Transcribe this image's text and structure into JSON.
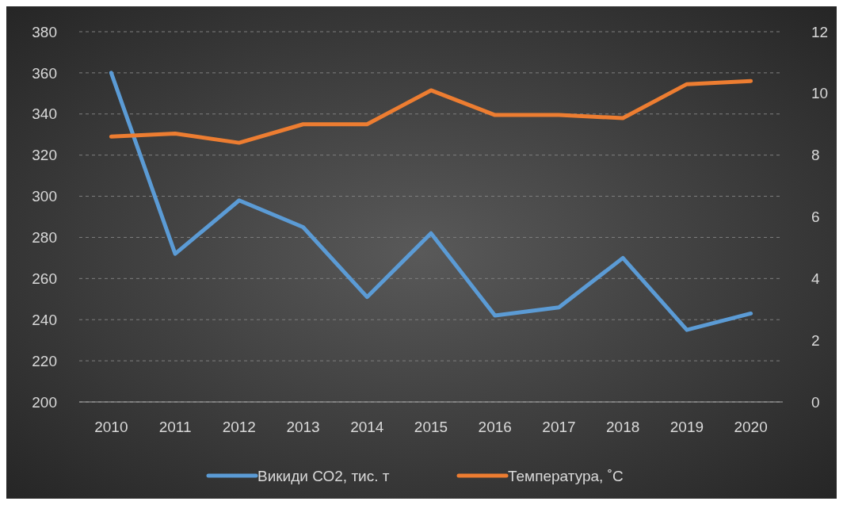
{
  "chart_data": {
    "type": "line",
    "categories": [
      "2010",
      "2011",
      "2012",
      "2013",
      "2014",
      "2015",
      "2016",
      "2017",
      "2018",
      "2019",
      "2020"
    ],
    "series": [
      {
        "name": "Викиди СО2, тис. т",
        "color": "#5b9bd5",
        "values": [
          360,
          272,
          298,
          285,
          251,
          282,
          242,
          246,
          270,
          235,
          243
        ]
      },
      {
        "name": "Температура, ˚С",
        "color": "#ed7d31",
        "axis": "y2",
        "values": [
          8.6,
          8.7,
          8.4,
          9.0,
          9.0,
          10.1,
          9.3,
          9.3,
          9.2,
          10.3,
          10.4
        ]
      }
    ],
    "ylim": [
      200,
      380
    ],
    "yticks": [
      200,
      220,
      240,
      260,
      280,
      300,
      320,
      340,
      360,
      380
    ],
    "y2lim": [
      0,
      12
    ],
    "y2ticks": [
      0,
      2,
      4,
      6,
      8,
      10,
      12
    ],
    "grid": "y",
    "legend": "bottom",
    "marker": "none",
    "line_style": "solid"
  }
}
